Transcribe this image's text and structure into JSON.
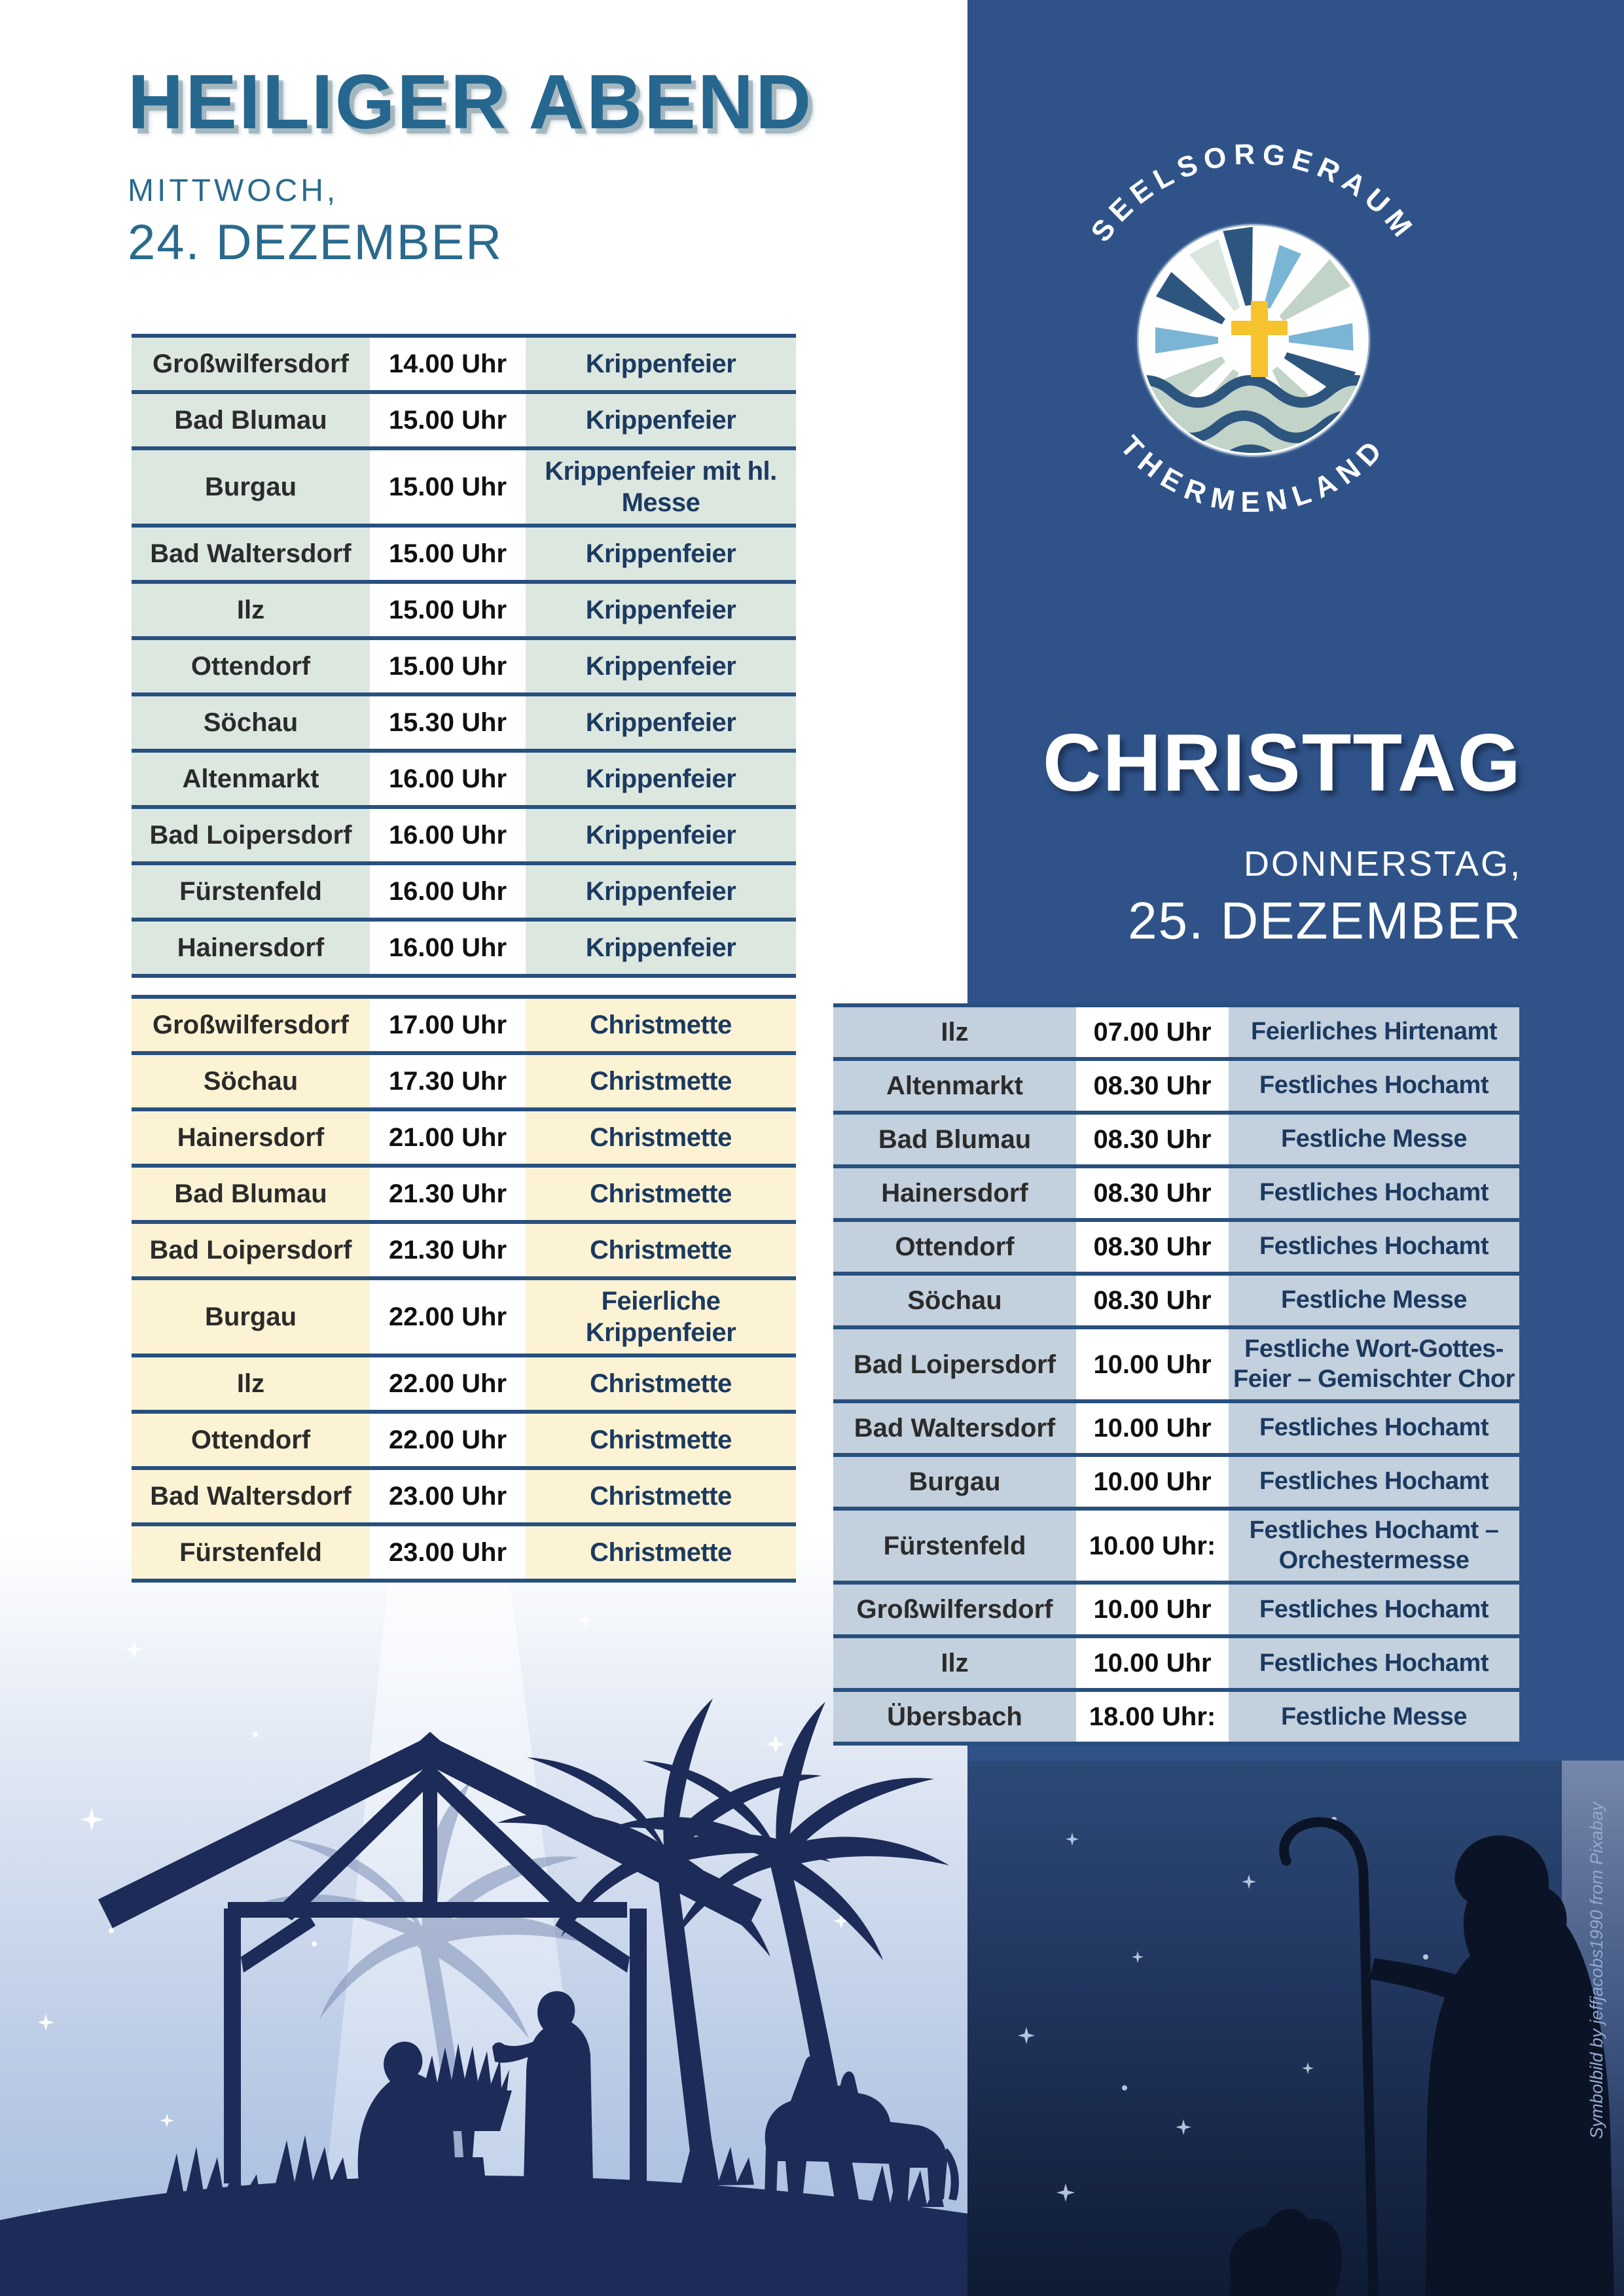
{
  "left_section": {
    "title": "HEILIGER ABEND",
    "weekday": "MITTWOCH,",
    "date": "24. DEZEMBER"
  },
  "right_section": {
    "title": "CHRISTTAG",
    "weekday": "DONNERSTAG,",
    "date": "25. DEZEMBER",
    "logo": {
      "arc_top": "SEELSORGERAUM",
      "arc_bottom": "THERMENLAND",
      "icon": "cross-with-rays-over-water"
    }
  },
  "schedule_dec24": {
    "krippenfeier_rows": [
      {
        "location": "Großwilfersdorf",
        "time": "14.00 Uhr",
        "service": "Krippenfeier"
      },
      {
        "location": "Bad Blumau",
        "time": "15.00 Uhr",
        "service": "Krippenfeier"
      },
      {
        "location": "Burgau",
        "time": "15.00 Uhr",
        "service": "Krippenfeier mit hl. Messe"
      },
      {
        "location": "Bad Waltersdorf",
        "time": "15.00 Uhr",
        "service": "Krippenfeier"
      },
      {
        "location": "Ilz",
        "time": "15.00 Uhr",
        "service": "Krippenfeier"
      },
      {
        "location": "Ottendorf",
        "time": "15.00 Uhr",
        "service": "Krippenfeier"
      },
      {
        "location": "Söchau",
        "time": "15.30 Uhr",
        "service": "Krippenfeier"
      },
      {
        "location": "Altenmarkt",
        "time": "16.00 Uhr",
        "service": "Krippenfeier"
      },
      {
        "location": "Bad Loipersdorf",
        "time": "16.00 Uhr",
        "service": "Krippenfeier"
      },
      {
        "location": "Fürstenfeld",
        "time": "16.00 Uhr",
        "service": "Krippenfeier"
      },
      {
        "location": "Hainersdorf",
        "time": "16.00 Uhr",
        "service": "Krippenfeier"
      }
    ],
    "christmette_rows": [
      {
        "location": "Großwilfersdorf",
        "time": "17.00 Uhr",
        "service": "Christmette"
      },
      {
        "location": "Söchau",
        "time": "17.30 Uhr",
        "service": "Christmette"
      },
      {
        "location": "Hainersdorf",
        "time": "21.00 Uhr",
        "service": "Christmette"
      },
      {
        "location": "Bad Blumau",
        "time": "21.30 Uhr",
        "service": "Christmette"
      },
      {
        "location": "Bad Loipersdorf",
        "time": "21.30 Uhr",
        "service": "Christmette"
      },
      {
        "location": "Burgau",
        "time": "22.00 Uhr",
        "service": "Feierliche Krippenfeier"
      },
      {
        "location": "Ilz",
        "time": "22.00 Uhr",
        "service": "Christmette"
      },
      {
        "location": "Ottendorf",
        "time": "22.00 Uhr",
        "service": "Christmette"
      },
      {
        "location": "Bad Waltersdorf",
        "time": "23.00 Uhr",
        "service": "Christmette"
      },
      {
        "location": "Fürstenfeld",
        "time": "23.00 Uhr",
        "service": "Christmette"
      }
    ]
  },
  "schedule_dec25": {
    "rows": [
      {
        "location": "Ilz",
        "time": "07.00 Uhr",
        "service": "Feierliches Hirtenamt"
      },
      {
        "location": "Altenmarkt",
        "time": "08.30 Uhr",
        "service": "Festliches Hochamt"
      },
      {
        "location": "Bad Blumau",
        "time": "08.30 Uhr",
        "service": "Festliche Messe"
      },
      {
        "location": "Hainersdorf",
        "time": "08.30 Uhr",
        "service": "Festliches Hochamt"
      },
      {
        "location": "Ottendorf",
        "time": "08.30 Uhr",
        "service": "Festliches Hochamt"
      },
      {
        "location": "Söchau",
        "time": "08.30 Uhr",
        "service": "Festliche Messe"
      },
      {
        "location": "Bad Loipersdorf",
        "time": "10.00 Uhr",
        "service": "Festliche Wort-Gottes-Feier – Gemischter Chor"
      },
      {
        "location": "Bad Waltersdorf",
        "time": "10.00 Uhr",
        "service": "Festliches Hochamt"
      },
      {
        "location": "Burgau",
        "time": "10.00 Uhr",
        "service": "Festliches Hochamt"
      },
      {
        "location": "Fürstenfeld",
        "time": "10.00 Uhr:",
        "service": "Festliches Hochamt – Orchestermesse"
      },
      {
        "location": "Großwilfersdorf",
        "time": "10.00 Uhr",
        "service": "Festliches Hochamt"
      },
      {
        "location": "Ilz",
        "time": "10.00 Uhr",
        "service": "Festliches Hochamt"
      },
      {
        "location": "Übersbach",
        "time": "18.00 Uhr:",
        "service": "Festliche Messe"
      }
    ]
  },
  "credit": "Symbolbild by jeffjacobs1990 from Pixabay",
  "colors": {
    "panel_blue": "#2f5389",
    "table_line": "#28507f",
    "mint_row": "#dce7e0",
    "cream_row": "#fcf3d4",
    "bluegray_row": "#c3d0dd",
    "title_teal": "#26678f",
    "service_navy": "#1c3a60",
    "logo_cross_gold": "#f6c22e",
    "logo_dark_blue": "#2d567f",
    "logo_sky_blue": "#7ab5d6",
    "logo_sage": "#c2d3c8",
    "silhouette_navy": "#1d2b58",
    "night_silhouette": "#0b1426"
  }
}
